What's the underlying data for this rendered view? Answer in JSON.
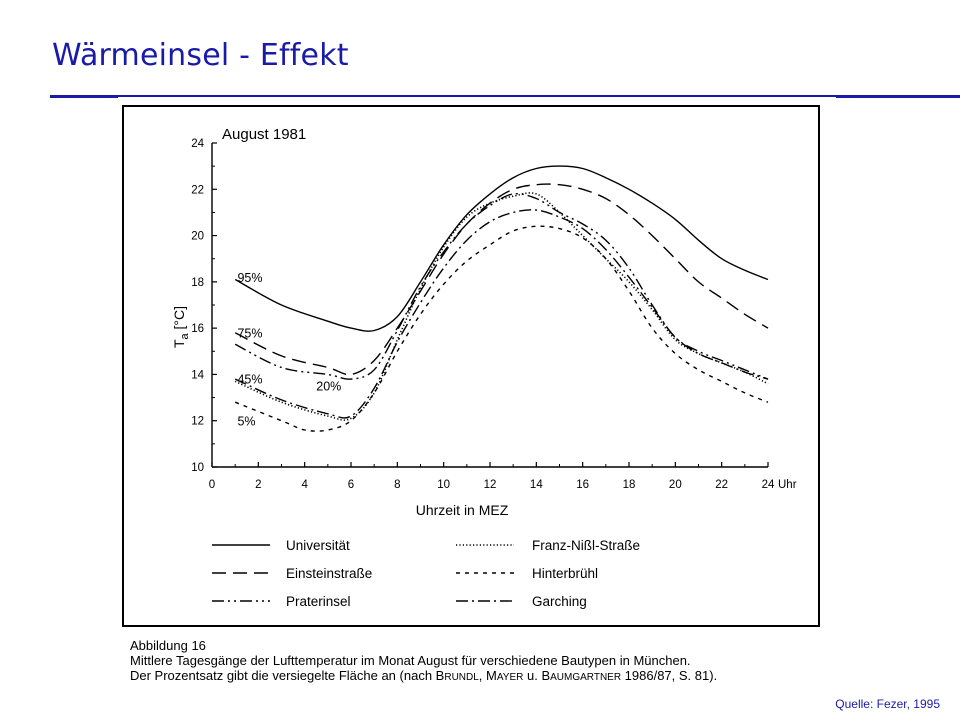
{
  "slide": {
    "title": "Wärmeinsel - Effekt",
    "source": "Quelle: Fezer, 1995",
    "accent_color": "#1a1aa8"
  },
  "caption": {
    "line1": "Abbildung 16",
    "line2": "Mittlere Tagesgänge der Lufttemperatur im Monat August für verschiedene Bautypen in München.",
    "line3_pre": "Der Prozentsatz gibt die versiegelte Fläche an (nach ",
    "name1": "Brundl",
    "sep1": ", ",
    "name2": "Mayer",
    "sep2": " u. ",
    "name3": "Baumgartner",
    "line3_post": " 1986/87, S. 81)."
  },
  "chart_data": {
    "type": "line",
    "title": "August 1981",
    "xlabel": "Uhrzeit in MEZ",
    "ylabel_main": "T",
    "ylabel_sub": "a",
    "ylabel_unit": " [°C]",
    "xlim": [
      0,
      24
    ],
    "ylim": [
      10,
      24
    ],
    "xticks": [
      0,
      2,
      4,
      6,
      8,
      10,
      12,
      14,
      16,
      18,
      20,
      22,
      24
    ],
    "xtick_labels": [
      "0",
      "2",
      "4",
      "6",
      "8",
      "10",
      "12",
      "14",
      "16",
      "18",
      "20",
      "22",
      "24"
    ],
    "x_unit_label": "Uhr",
    "yticks": [
      10,
      12,
      14,
      16,
      18,
      20,
      22,
      24
    ],
    "ytick_labels": [
      "10",
      "12",
      "14",
      "16",
      "18",
      "20",
      "22",
      "24"
    ],
    "grid": false,
    "legend_placement": "below",
    "annotations": [
      {
        "text": "95%",
        "x": 1.1,
        "y": 18.0
      },
      {
        "text": "75%",
        "x": 1.1,
        "y": 15.6
      },
      {
        "text": "45%",
        "x": 1.1,
        "y": 13.6
      },
      {
        "text": "20%",
        "x": 4.5,
        "y": 13.3
      },
      {
        "text": "5%",
        "x": 1.1,
        "y": 11.8
      }
    ],
    "series": [
      {
        "name": "Universität",
        "dash": "solid",
        "x": [
          1,
          3,
          5,
          6,
          7,
          8,
          9,
          10,
          11,
          12,
          13,
          14,
          15,
          16,
          17,
          18,
          19,
          20,
          21,
          22,
          23,
          24
        ],
        "y": [
          18.1,
          17.0,
          16.3,
          16.0,
          15.9,
          16.5,
          18.0,
          19.6,
          20.9,
          21.8,
          22.5,
          22.9,
          23.0,
          22.9,
          22.5,
          22.0,
          21.4,
          20.7,
          19.8,
          19.0,
          18.5,
          18.1
        ]
      },
      {
        "name": "Einsteinstraße",
        "dash": "longdash",
        "x": [
          1,
          3,
          5,
          6,
          7,
          8,
          9,
          10,
          11,
          12,
          13,
          14,
          15,
          16,
          17,
          18,
          19,
          20,
          21,
          22,
          23,
          24
        ],
        "y": [
          15.8,
          14.8,
          14.3,
          14.0,
          14.6,
          16.0,
          17.6,
          19.2,
          20.5,
          21.4,
          22.0,
          22.2,
          22.2,
          22.0,
          21.6,
          20.9,
          20.0,
          19.0,
          18.0,
          17.3,
          16.6,
          16.0
        ]
      },
      {
        "name": "Praterinsel",
        "dash": "dashdotdot",
        "x": [
          1,
          3,
          5,
          6,
          7,
          8,
          9,
          10,
          11,
          12,
          13,
          14,
          15,
          16,
          17,
          18,
          19,
          20,
          21,
          22,
          23,
          24
        ],
        "y": [
          15.3,
          14.3,
          14.0,
          13.8,
          14.2,
          15.9,
          17.8,
          19.3,
          20.5,
          21.3,
          21.8,
          21.6,
          21.0,
          20.5,
          19.8,
          18.6,
          17.0,
          15.6,
          15.0,
          14.6,
          14.2,
          13.8
        ]
      },
      {
        "name": "Franz-Nißl-Straße",
        "dash": "dotted",
        "x": [
          1,
          3,
          5,
          6,
          7,
          8,
          9,
          10,
          11,
          12,
          13,
          14,
          15,
          16,
          17,
          18,
          19,
          20,
          21,
          22,
          23,
          24
        ],
        "y": [
          13.7,
          12.8,
          12.2,
          12.1,
          13.2,
          15.5,
          17.7,
          19.5,
          20.8,
          21.4,
          21.7,
          21.8,
          21.0,
          20.0,
          19.0,
          18.0,
          16.8,
          15.5,
          14.9,
          14.5,
          14.1,
          13.6
        ]
      },
      {
        "name": "Hinterbrühl",
        "dash": "shortdash",
        "x": [
          1,
          3,
          4,
          5,
          6,
          7,
          8,
          9,
          10,
          11,
          12,
          13,
          14,
          15,
          16,
          17,
          18,
          19,
          20,
          21,
          22,
          23,
          24
        ],
        "y": [
          12.8,
          12.0,
          11.6,
          11.6,
          12.0,
          13.2,
          15.0,
          16.6,
          17.9,
          18.9,
          19.6,
          20.2,
          20.4,
          20.3,
          19.9,
          19.0,
          17.6,
          16.0,
          14.9,
          14.2,
          13.7,
          13.2,
          12.8
        ]
      },
      {
        "name": "Garching",
        "dash": "dashdot",
        "x": [
          1,
          3,
          5,
          6,
          7,
          8,
          9,
          10,
          11,
          12,
          13,
          14,
          15,
          16,
          17,
          18,
          19,
          20,
          21,
          22,
          23,
          24
        ],
        "y": [
          13.8,
          12.9,
          12.3,
          12.2,
          13.4,
          15.4,
          17.1,
          18.6,
          19.8,
          20.6,
          21.0,
          21.1,
          20.8,
          20.3,
          19.4,
          18.2,
          16.9,
          15.6,
          14.9,
          14.5,
          14.1,
          13.8
        ]
      }
    ]
  }
}
